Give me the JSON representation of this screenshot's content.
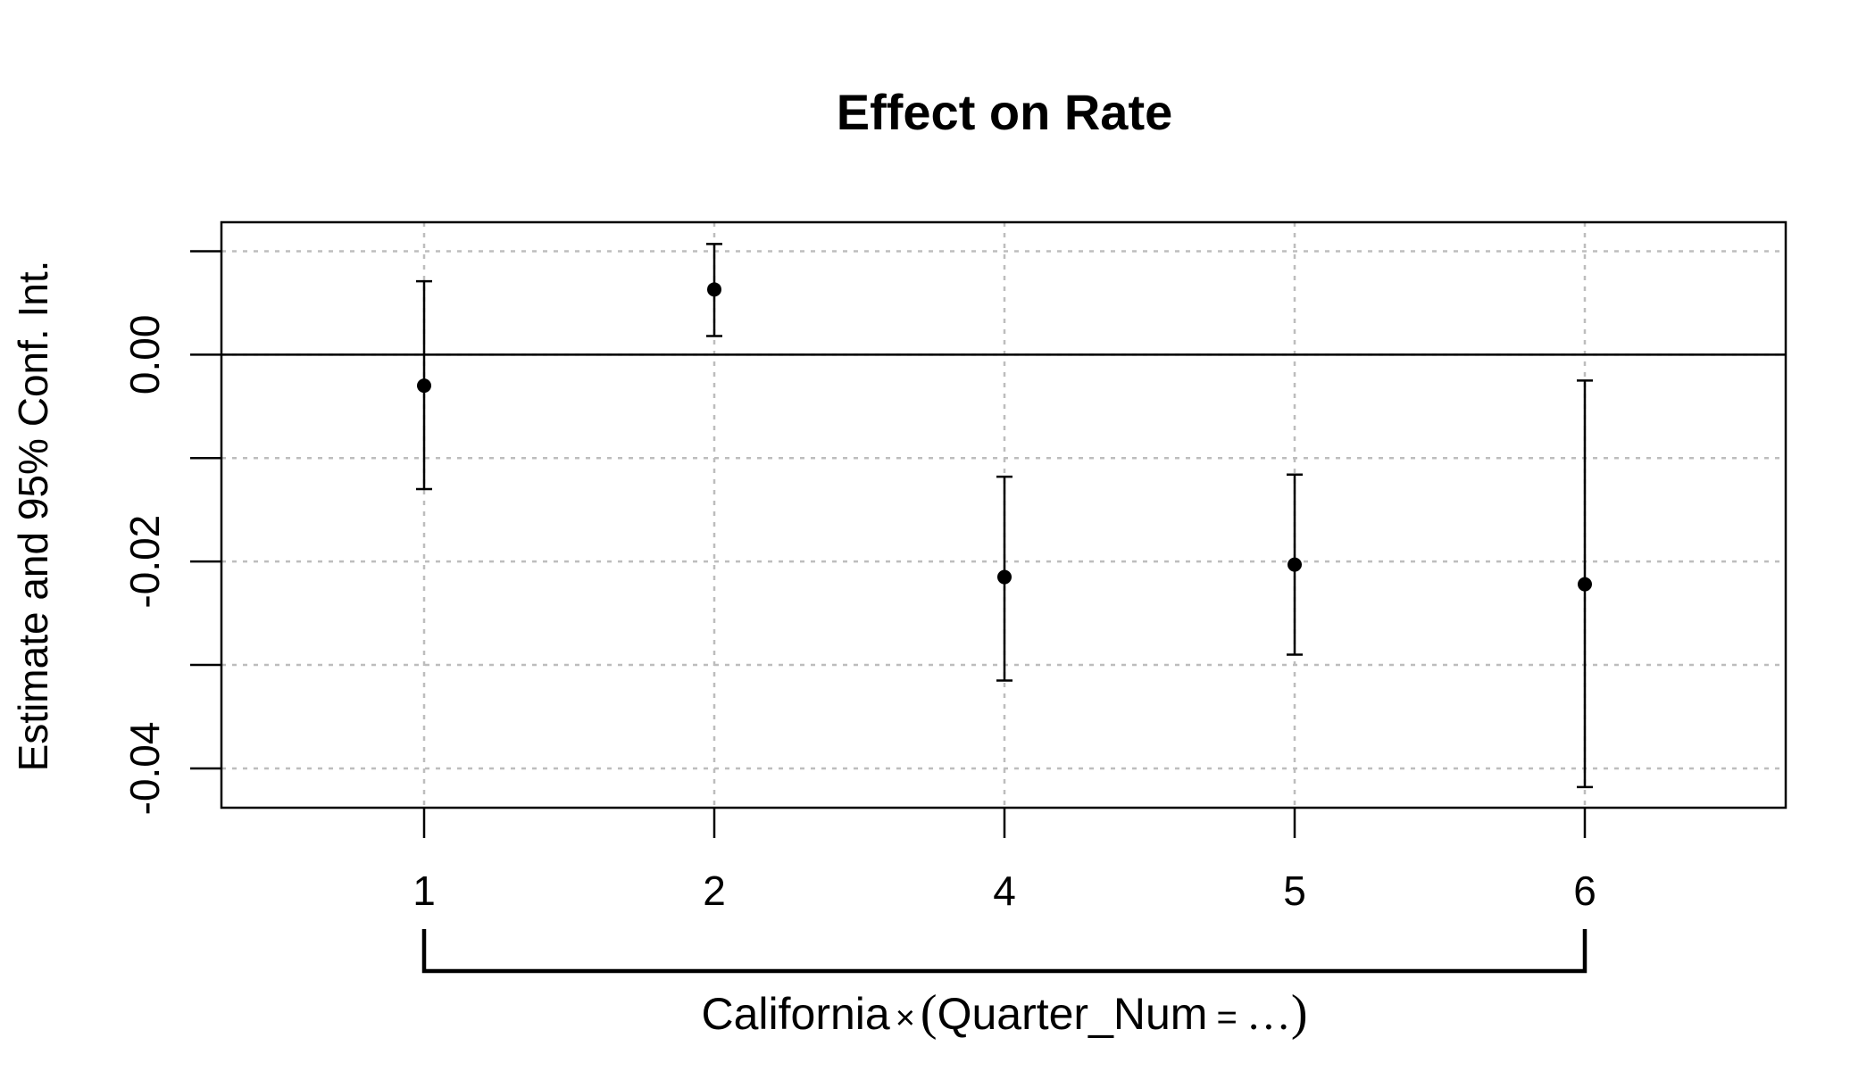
{
  "chart_data": {
    "type": "scatter",
    "title": "Effect on Rate",
    "ylabel": "Estimate and 95% Conf. Int.",
    "xgroup_label": {
      "prefix": "California",
      "operator": "×",
      "open": "(",
      "variable": "Quarter_Num",
      "equals": "=",
      "ellipsis": "…",
      "close": ")"
    },
    "categories": [
      "1",
      "2",
      "4",
      "5",
      "6"
    ],
    "estimate": [
      -0.003,
      0.0063,
      -0.0215,
      -0.0203,
      -0.0222
    ],
    "ci_low": [
      -0.013,
      0.0018,
      -0.0315,
      -0.029,
      -0.0418
    ],
    "ci_high": [
      0.0071,
      0.0107,
      -0.0118,
      -0.0116,
      -0.0025
    ],
    "ylim": [
      -0.0438,
      0.0128
    ],
    "yticks": [
      0.01,
      0.0,
      -0.01,
      -0.02,
      -0.03,
      -0.04
    ],
    "ytick_labels": [
      "",
      "0.00",
      "",
      "-0.02",
      "",
      "-0.04"
    ],
    "reference_line": 0,
    "grid": true
  }
}
